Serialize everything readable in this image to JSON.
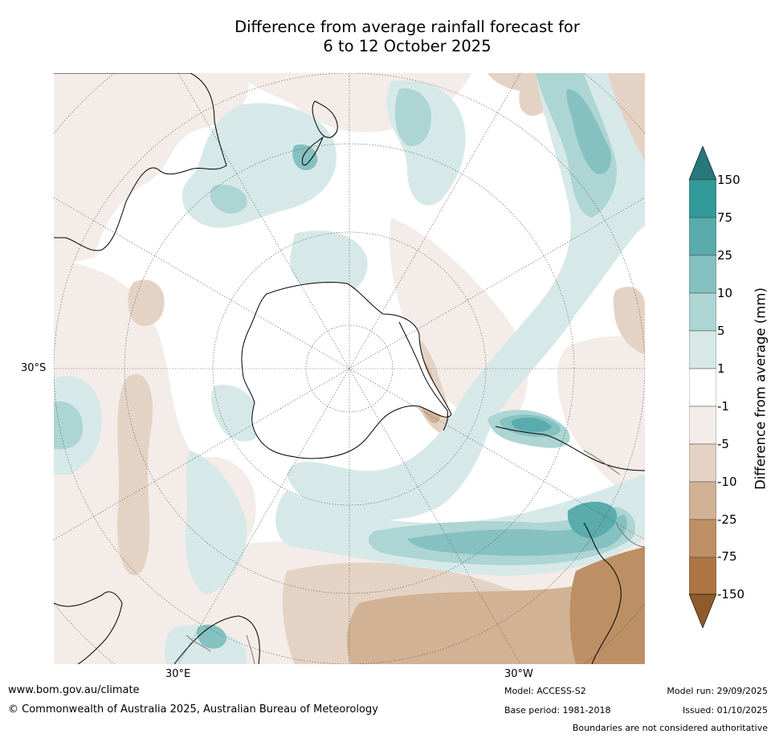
{
  "title": {
    "line1": "Difference from average rainfall forecast for",
    "line2": "6 to 12 October 2025"
  },
  "axes": {
    "lat_label": "30°S",
    "lon_labels": [
      "30°E",
      "30°W"
    ]
  },
  "colorbar": {
    "title": "Difference from average (mm)",
    "ticks": [
      "150",
      "75",
      "25",
      "10",
      "5",
      "1",
      "-1",
      "-5",
      "-10",
      "-25",
      "-75",
      "-150"
    ],
    "colors": {
      "above_150": "#26787a",
      "b75_150": "#339a9a",
      "b25_75": "#5aabab",
      "b10_25": "#85c1c0",
      "b5_10": "#acd5d4",
      "b1_5": "#d6e9e8",
      "bm1_1": "#ffffff",
      "bm5_m1": "#f3ece8",
      "bm10_m5": "#e4d3c5",
      "bm25_m10": "#d2b294",
      "bm75_m25": "#bd8f64",
      "bm150_m75": "#ad7541",
      "below_m150": "#8f5b2b"
    }
  },
  "footer": {
    "website": "www.bom.gov.au/climate",
    "copyright": "© Commonwealth of Australia 2025, Australian Bureau of Meteorology",
    "model": "Model: ACCESS-S2",
    "base_period": "Base period: 1981-2018",
    "model_run": "Model run: 29/09/2025",
    "issued": "Issued: 01/10/2025",
    "disclaimer": "Boundaries are not considered authoritative"
  }
}
